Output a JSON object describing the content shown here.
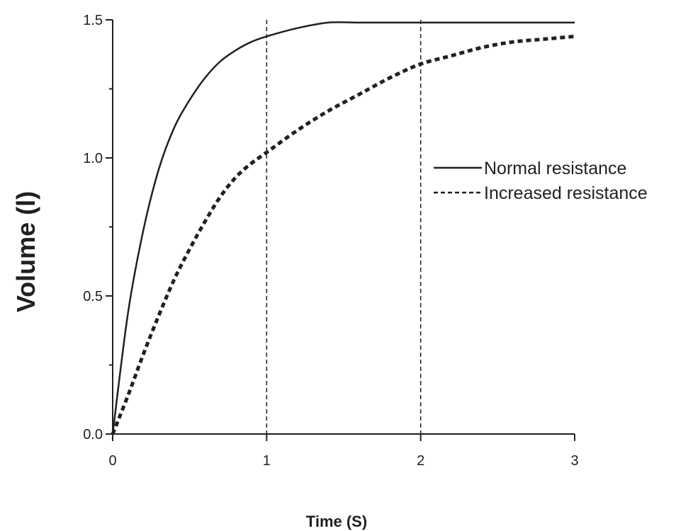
{
  "chart_data": {
    "type": "line",
    "title": "",
    "xlabel": "Time (S)",
    "ylabel": "Volume (l)",
    "xlim": [
      0,
      3
    ],
    "ylim": [
      0,
      1.5
    ],
    "x_ticks": [
      "0",
      "1",
      "2",
      "3"
    ],
    "y_ticks": [
      "0.0",
      "0.5",
      "1.0",
      "1.5"
    ],
    "grid": false,
    "legend_position": "right",
    "reference_lines_x": [
      1,
      2
    ],
    "series": [
      {
        "name": "Normal resistance",
        "line_style": "solid",
        "color": "#231f20",
        "x": [
          0,
          0.1,
          0.2,
          0.3,
          0.4,
          0.5,
          0.6,
          0.7,
          0.8,
          0.9,
          1.0,
          1.2,
          1.4,
          1.6,
          2.0,
          2.5,
          3.0
        ],
        "y": [
          0,
          0.44,
          0.74,
          0.96,
          1.11,
          1.21,
          1.29,
          1.35,
          1.39,
          1.42,
          1.44,
          1.47,
          1.49,
          1.49,
          1.49,
          1.49,
          1.49
        ]
      },
      {
        "name": "Increased resistance",
        "line_style": "dashed",
        "color": "#231f20",
        "x": [
          0,
          0.1,
          0.2,
          0.3,
          0.4,
          0.5,
          0.6,
          0.7,
          0.8,
          0.9,
          1.0,
          1.2,
          1.4,
          1.6,
          1.8,
          2.0,
          2.2,
          2.4,
          2.6,
          2.8,
          3.0
        ],
        "y": [
          0,
          0.14,
          0.29,
          0.43,
          0.56,
          0.67,
          0.77,
          0.86,
          0.93,
          0.98,
          1.02,
          1.1,
          1.17,
          1.23,
          1.29,
          1.34,
          1.37,
          1.4,
          1.42,
          1.43,
          1.44
        ]
      }
    ]
  }
}
